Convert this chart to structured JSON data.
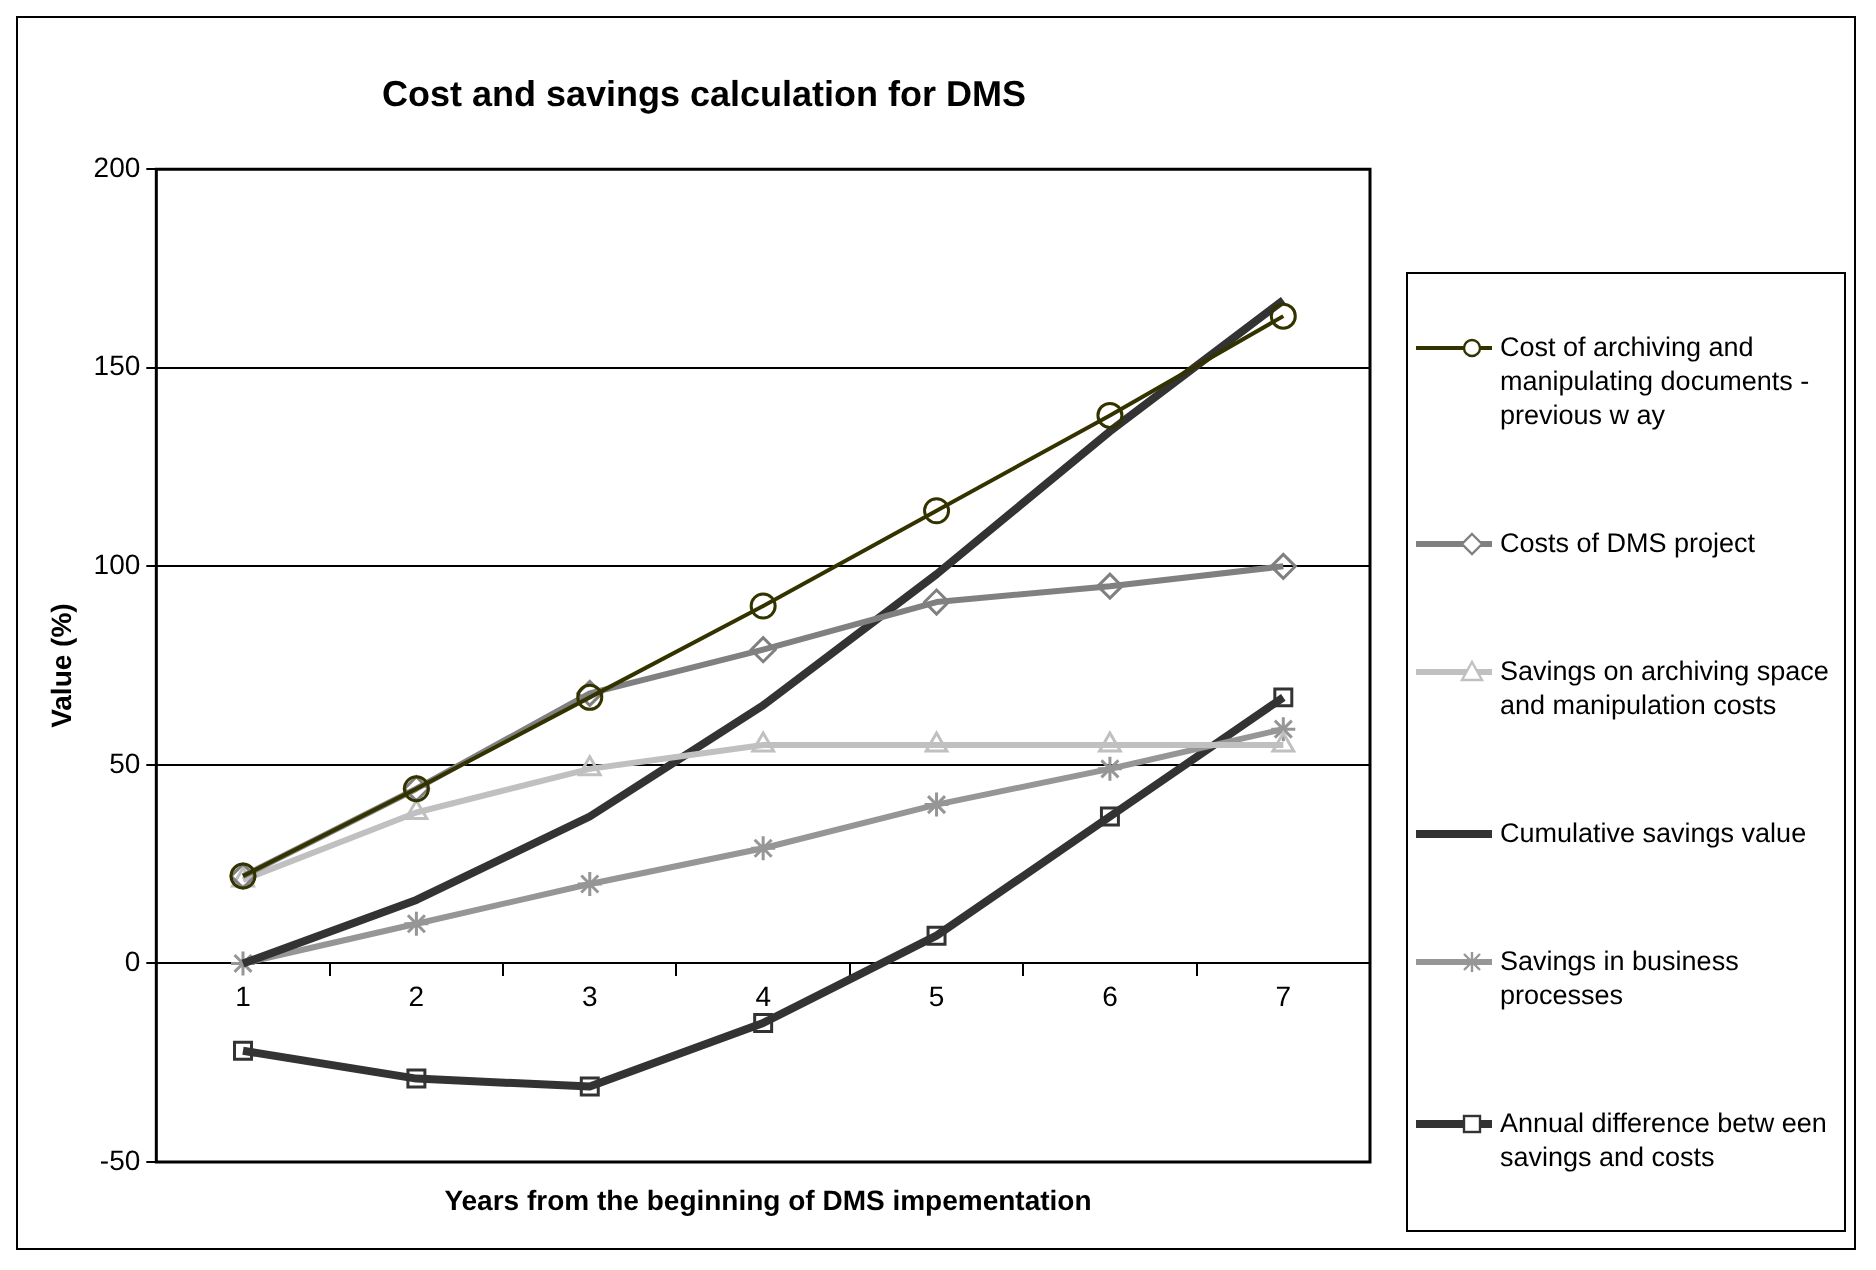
{
  "chart_data": {
    "type": "line",
    "title": "Cost and savings calculation for DMS",
    "xlabel": "Years from the beginning of DMS impementation",
    "ylabel": "Value (%)",
    "categories": [
      "1",
      "2",
      "3",
      "4",
      "5",
      "6",
      "7"
    ],
    "series": [
      {
        "name": "Cost of archiving and manipulating documents - previous w ay",
        "color": "#333300",
        "marker": "circle",
        "values": [
          22,
          44,
          67,
          90,
          114,
          138,
          163
        ]
      },
      {
        "name": "Costs of DMS project",
        "color": "#808080",
        "marker": "diamond",
        "values": [
          22,
          44,
          68,
          79,
          91,
          95,
          100
        ]
      },
      {
        "name": "Savings on archiving space and manipulation costs",
        "color": "#c0c0c0",
        "marker": "triangle",
        "values": [
          21,
          38,
          49,
          55,
          55,
          55,
          55
        ]
      },
      {
        "name": "Cumulative savings value",
        "color": "#333333",
        "marker": "none",
        "values": [
          0,
          16,
          37,
          65,
          98,
          134,
          167
        ]
      },
      {
        "name": "Savings in business processes",
        "color": "#969696",
        "marker": "cross",
        "values": [
          0,
          10,
          20,
          29,
          40,
          49,
          59
        ]
      },
      {
        "name": "Annual difference betw een savings and costs",
        "color": "#333333",
        "marker": "square",
        "values": [
          -22,
          -29,
          -31,
          -15,
          7,
          37,
          67
        ]
      }
    ],
    "ylim": [
      -50,
      200
    ],
    "yticks": [
      -50,
      0,
      50,
      100,
      150,
      200
    ],
    "grid": "y",
    "legend": "right"
  }
}
